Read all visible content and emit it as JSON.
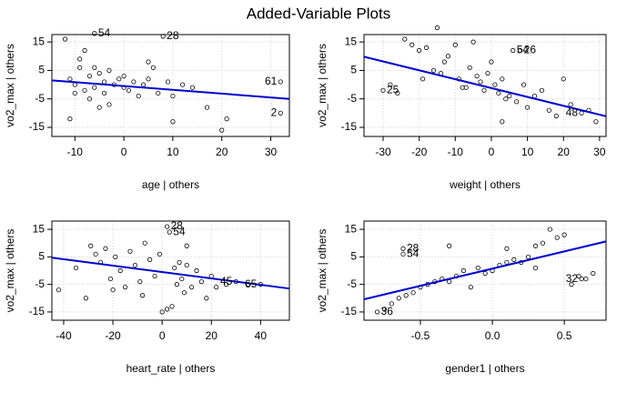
{
  "title": "Added-Variable Plots",
  "chart_data": [
    {
      "type": "scatter",
      "xlabel": "age | others",
      "ylabel": "vo2_max | others",
      "x": [
        -12,
        -11,
        -10,
        -10,
        -9,
        -9,
        -8,
        -8,
        -7,
        -7,
        -6,
        -6,
        -5,
        -5,
        -4,
        -4,
        -3,
        -2,
        -1,
        0,
        0,
        1,
        2,
        3,
        4,
        5,
        6,
        7,
        8,
        9,
        10,
        12,
        14,
        17,
        20,
        21,
        32,
        32,
        -6,
        -11,
        -3,
        5,
        10
      ],
      "y": [
        16,
        2,
        0,
        -3,
        6,
        9,
        -2,
        12,
        3,
        -5,
        6,
        -1,
        4,
        -8,
        1,
        -3,
        5,
        0,
        2,
        -1,
        3,
        -2,
        1,
        -4,
        0,
        2,
        6,
        -3,
        17,
        1,
        -13,
        0,
        -1,
        -8,
        -16,
        -12,
        1,
        -10,
        18,
        -12,
        -7,
        8,
        -4
      ],
      "point_labels": [
        {
          "text": "54",
          "x": -6,
          "y": 18
        },
        {
          "text": "28",
          "x": 8,
          "y": 17
        },
        {
          "text": "61",
          "x": 32,
          "y": 1
        },
        {
          "text": "2",
          "x": 32,
          "y": -10
        }
      ],
      "fit_line": {
        "x": [
          -14.7,
          33.8
        ],
        "y": [
          1.5,
          -5
        ]
      },
      "xlim": [
        -14.7,
        33.8
      ],
      "ylim": [
        -18.2,
        17.6
      ],
      "xticks": [
        -10,
        0,
        10,
        20,
        30
      ],
      "yticks": [
        -15,
        -5,
        5,
        15
      ],
      "color": "#000000",
      "line_color": "#0000cd",
      "grid": true
    },
    {
      "type": "scatter",
      "xlabel": "weight | others",
      "ylabel": "vo2_max | others",
      "x": [
        -30,
        -28,
        -26,
        -24,
        -22,
        -20,
        -19,
        -18,
        -16,
        -14,
        -13,
        -12,
        -10,
        -9,
        -8,
        -6,
        -5,
        -4,
        -3,
        -2,
        -1,
        0,
        1,
        2,
        3,
        4,
        5,
        6,
        7,
        8,
        9,
        10,
        12,
        14,
        16,
        18,
        20,
        22,
        25,
        27,
        29,
        -15,
        -7,
        3
      ],
      "y": [
        -2,
        0,
        -3,
        16,
        14,
        12,
        2,
        13,
        5,
        4,
        8,
        10,
        14,
        2,
        -1,
        6,
        15,
        3,
        1,
        -2,
        4,
        8,
        0,
        -3,
        2,
        -5,
        -4,
        12,
        -6,
        12,
        0,
        -8,
        -4,
        -2,
        -9,
        -11,
        2,
        -7,
        -10,
        -9,
        -13,
        20,
        -1,
        -13
      ],
      "point_labels": [
        {
          "text": "25",
          "x": -30,
          "y": -2
        },
        {
          "text": "26",
          "x": 8,
          "y": 12
        },
        {
          "text": "54",
          "x": 6,
          "y": 12
        },
        {
          "text": "48",
          "x": 25,
          "y": -10
        }
      ],
      "fit_line": {
        "x": [
          -35.3,
          31.8
        ],
        "y": [
          9.8,
          -11.1
        ]
      },
      "xlim": [
        -35.3,
        31.8
      ],
      "ylim": [
        -18.2,
        17.6
      ],
      "xticks": [
        -30,
        -20,
        -10,
        0,
        10,
        20,
        30
      ],
      "yticks": [
        -15,
        -5,
        5,
        15
      ],
      "color": "#000000",
      "line_color": "#0000cd",
      "grid": true
    },
    {
      "type": "scatter",
      "xlabel": "heart_rate | others",
      "ylabel": "vo2_max | others",
      "x": [
        -42,
        -35,
        -31,
        -29,
        -27,
        -25,
        -23,
        -21,
        -19,
        -17,
        -15,
        -13,
        -11,
        -9,
        -7,
        -5,
        -3,
        -1,
        0,
        2,
        3,
        4,
        5,
        6,
        7,
        8,
        9,
        10,
        12,
        14,
        16,
        18,
        20,
        22,
        26,
        30,
        35,
        40,
        -20,
        -8,
        10,
        2
      ],
      "y": [
        -7,
        1,
        -10,
        9,
        6,
        3,
        8,
        -3,
        5,
        0,
        -6,
        7,
        2,
        -4,
        10,
        4,
        -2,
        6,
        -15,
        16,
        14,
        -13,
        1,
        -5,
        3,
        -3,
        -8,
        2,
        -6,
        0,
        -4,
        -10,
        -2,
        -6,
        -5,
        -4,
        -5,
        -5,
        -7,
        -9,
        9,
        -14
      ],
      "point_labels": [
        {
          "text": "28",
          "x": 2,
          "y": 16
        },
        {
          "text": "54",
          "x": 3,
          "y": 14
        },
        {
          "text": "45",
          "x": 30,
          "y": -4
        },
        {
          "text": "65",
          "x": 40,
          "y": -5
        }
      ],
      "fit_line": {
        "x": [
          -44.8,
          51.7
        ],
        "y": [
          4.7,
          -6.5
        ]
      },
      "xlim": [
        -44.8,
        51.7
      ],
      "ylim": [
        -18,
        18
      ],
      "xticks": [
        -40,
        -20,
        0,
        20,
        40
      ],
      "yticks": [
        -15,
        -5,
        5,
        15
      ],
      "color": "#000000",
      "line_color": "#0000cd",
      "grid": true
    },
    {
      "type": "scatter",
      "xlabel": "gender1 | others",
      "ylabel": "vo2_max | others",
      "x": [
        -0.8,
        -0.75,
        -0.7,
        -0.65,
        -0.6,
        -0.55,
        -0.5,
        -0.45,
        -0.4,
        -0.35,
        -0.3,
        -0.25,
        -0.2,
        -0.15,
        -0.1,
        -0.05,
        0,
        0.05,
        0.1,
        0.15,
        0.2,
        0.25,
        0.3,
        0.35,
        0.4,
        0.45,
        0.5,
        0.55,
        0.6,
        0.65,
        0.7,
        -0.62,
        -0.62,
        0.62,
        0.3,
        -0.3,
        0.1
      ],
      "y": [
        -15,
        -14,
        -12,
        -10,
        -9,
        -8,
        -6,
        -5,
        -4,
        -3,
        9,
        -2,
        0,
        -6,
        1,
        -1,
        0,
        2,
        3,
        4,
        3,
        5,
        9,
        10,
        15,
        12,
        13,
        -5,
        -2,
        -3,
        -1,
        8,
        6,
        -3,
        1,
        -4,
        8
      ],
      "point_labels": [
        {
          "text": "36",
          "x": -0.8,
          "y": -15
        },
        {
          "text": "28",
          "x": -0.62,
          "y": 8
        },
        {
          "text": "54",
          "x": -0.62,
          "y": 6
        },
        {
          "text": "32",
          "x": 0.62,
          "y": -3
        }
      ],
      "fit_line": {
        "x": [
          -0.892,
          0.79
        ],
        "y": [
          -10.4,
          10.6
        ]
      },
      "xlim": [
        -0.892,
        0.79
      ],
      "ylim": [
        -18,
        18
      ],
      "xticks": [
        -0.5,
        {
          "value": 0,
          "label": "0.0"
        },
        0.5
      ],
      "yticks": [
        -15,
        -5,
        5,
        15
      ],
      "color": "#000000",
      "line_color": "#0000cd",
      "grid": true
    }
  ]
}
